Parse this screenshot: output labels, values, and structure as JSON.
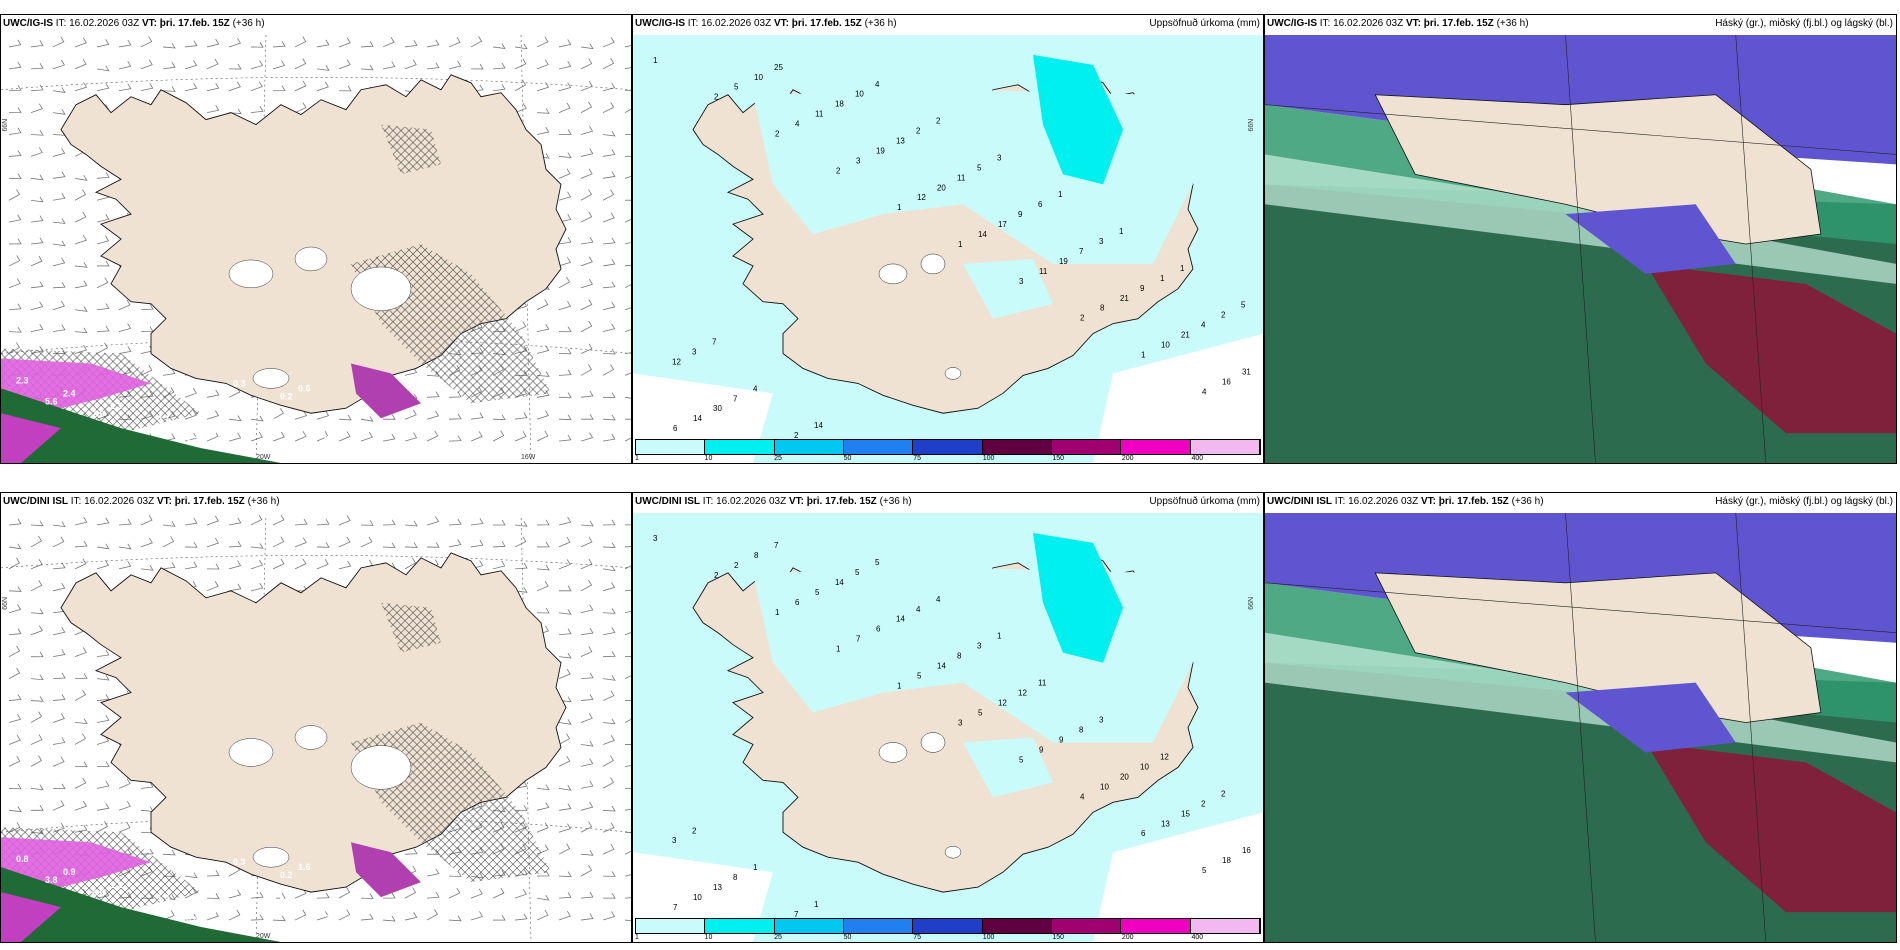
{
  "panels": [
    {
      "model": "UWC/IG-IS",
      "it_label": "IT:",
      "it": "16.02.2026 03Z",
      "vt_label": "VT:",
      "vt": "þri. 17.feb. 15Z",
      "lead": "(+36 h)",
      "right": "",
      "wind_labels": [
        "2.3",
        "2.4",
        "2.3",
        "0.7",
        "1.9",
        "1.3",
        "0.6",
        "5.6",
        "2.9",
        "2.4",
        "2.3",
        "0.3",
        "0.2",
        "0.9",
        "0.5",
        "1.2",
        "0.8",
        "0.3"
      ],
      "lat_label": "66N",
      "lon_labels": [
        "20W",
        "16W"
      ]
    },
    {
      "model": "UWC/IG-IS",
      "it_label": "IT:",
      "it": "16.02.2026 03Z",
      "vt_label": "VT:",
      "vt": "þri. 17.feb. 15Z",
      "lead": "(+36 h)",
      "right": "Uppsöfnuð úrkoma (mm)",
      "precip": [
        "1",
        "2",
        "2",
        "2",
        "1",
        "1",
        "3",
        "2",
        "1",
        "4",
        "6",
        "5",
        "4",
        "3",
        "12",
        "14",
        "11",
        "8",
        "10",
        "16",
        "14",
        "10",
        "11",
        "19",
        "20",
        "17",
        "19",
        "21",
        "21",
        "31",
        "30",
        "25",
        "18",
        "13",
        "11",
        "9",
        "7",
        "9",
        "4",
        "12",
        "7",
        "2",
        "10",
        "2",
        "5",
        "6",
        "3",
        "1",
        "2",
        "3",
        "4",
        "14",
        "4",
        "2",
        "3",
        "1",
        "1",
        "1",
        "5",
        "7"
      ],
      "lat_label": "66N",
      "colorbar": [
        "1",
        "10",
        "25",
        "50",
        "75",
        "100",
        "150",
        "200",
        "400"
      ]
    },
    {
      "model": "UWC/IG-IS",
      "it_label": "IT:",
      "it": "16.02.2026 03Z",
      "vt_label": "VT:",
      "vt": "þri. 17.feb. 15Z",
      "lead": "(+36 h)",
      "right": "Háský (gr.), miðský (fj.bl.) og lágský (bl.)"
    },
    {
      "model": "UWC/DINI ISL",
      "it_label": "IT:",
      "it": "16.02.2026 03Z",
      "vt_label": "VT:",
      "vt": "þri. 17.feb. 15Z",
      "lead": "(+36 h)",
      "right": "",
      "wind_labels": [
        "0.8",
        "0.9",
        "1.2",
        "1.4",
        "0.6",
        "0.6",
        "1.6",
        "3.8",
        "6.5",
        "9.9",
        "0.4",
        "0.3",
        "0.2",
        "0.4",
        "0.5",
        "0.3"
      ],
      "lat_label": "66N",
      "lon_labels": [
        "20W"
      ]
    },
    {
      "model": "UWC/DINI ISL",
      "it_label": "IT:",
      "it": "16.02.2026 03Z",
      "vt_label": "VT:",
      "vt": "þri. 17.feb. 15Z",
      "lead": "(+36 h)",
      "right": "Uppsöfnuð úrkoma (mm)",
      "precip": [
        "3",
        "2",
        "1",
        "1",
        "1",
        "3",
        "5",
        "4",
        "6",
        "5",
        "7",
        "2",
        "6",
        "7",
        "5",
        "5",
        "9",
        "10",
        "13",
        "18",
        "10",
        "8",
        "5",
        "6",
        "14",
        "12",
        "9",
        "20",
        "15",
        "16",
        "13",
        "7",
        "14",
        "14",
        "8",
        "12",
        "8",
        "10",
        "2",
        "3",
        "8",
        "7",
        "5",
        "4",
        "3",
        "11",
        "3",
        "12",
        "2",
        "2",
        "1",
        "1",
        "5",
        "4",
        "1"
      ],
      "lat_label": "66N",
      "colorbar": [
        "1",
        "10",
        "25",
        "50",
        "75",
        "100",
        "150",
        "200",
        "400"
      ]
    },
    {
      "model": "UWC/DINI ISL",
      "it_label": "IT:",
      "it": "16.02.2026 03Z",
      "vt_label": "VT:",
      "vt": "þri. 17.feb. 15Z",
      "lead": "(+36 h)",
      "right": "Háský (gr.), miðský (fj.bl.) og lágský (bl.)"
    }
  ],
  "colors": {
    "land": "#f0e2d2",
    "precip": [
      "#c9fbfb",
      "#00f0f0",
      "#00c8f0",
      "#2080f0",
      "#1f3fc8",
      "#600040",
      "#a00070",
      "#f000c0",
      "#f2b8f0"
    ],
    "cloud_high": "#2f9a6e",
    "cloud_mid": "#5f55d0",
    "cloud_low": "#2a7a4a"
  }
}
